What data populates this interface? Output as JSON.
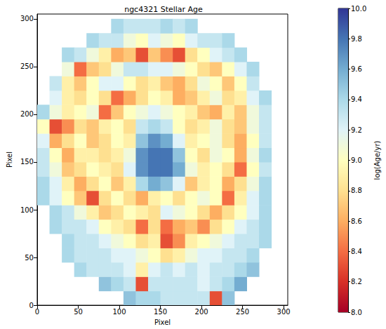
{
  "chart_data": {
    "type": "heatmap",
    "title": "ngc4321 Stellar Age",
    "x_label": "Pixel",
    "y_label": "Pixel",
    "xlim": [
      0,
      305
    ],
    "ylim": [
      0,
      305
    ],
    "xticks": [
      0,
      50,
      100,
      150,
      200,
      250,
      300
    ],
    "yticks": [
      0,
      50,
      100,
      150,
      200,
      250,
      300
    ],
    "grid": false,
    "cell_x": [
      7.5,
      22.5,
      37.5,
      52.5,
      67.5,
      82.5,
      97.5,
      112.5,
      127.5,
      142.5,
      157.5,
      172.5,
      187.5,
      202.5,
      217.5,
      232.5,
      247.5,
      262.5,
      277.5,
      292.5
    ],
    "cell_y": [
      7.5,
      22.5,
      37.5,
      52.5,
      67.5,
      82.5,
      97.5,
      112.5,
      127.5,
      142.5,
      157.5,
      172.5,
      187.5,
      202.5,
      217.5,
      232.5,
      247.5,
      262.5,
      277.5,
      292.5
    ],
    "cells": [
      [
        null,
        null,
        null,
        null,
        null,
        null,
        null,
        9.5,
        9.4,
        9.4,
        9.3,
        9.3,
        9.3,
        9.3,
        8.3,
        9.5,
        null,
        null,
        null,
        null
      ],
      [
        null,
        null,
        null,
        null,
        null,
        9.5,
        9.4,
        9.3,
        8.3,
        9.3,
        9.3,
        9.3,
        9.3,
        9.2,
        9.3,
        9.4,
        9.6,
        null,
        null,
        null
      ],
      [
        null,
        null,
        null,
        9.4,
        9.3,
        9.3,
        9.3,
        9.2,
        8.9,
        9.2,
        9.3,
        9.2,
        9.3,
        9.2,
        9.3,
        9.3,
        9.4,
        9.5,
        null,
        null
      ],
      [
        null,
        null,
        9.4,
        9.3,
        9.3,
        9.3,
        9.2,
        9.2,
        9.1,
        9.0,
        8.8,
        8.9,
        9.1,
        9.2,
        9.2,
        9.3,
        9.3,
        9.4,
        null,
        null
      ],
      [
        null,
        null,
        9.4,
        9.3,
        9.3,
        9.2,
        9.1,
        9.0,
        8.8,
        8.9,
        8.3,
        8.5,
        8.9,
        9.0,
        9.1,
        9.2,
        9.3,
        9.3,
        9.4,
        null
      ],
      [
        null,
        9.4,
        9.3,
        9.3,
        9.2,
        9.0,
        8.9,
        8.8,
        8.4,
        8.8,
        8.4,
        8.6,
        8.7,
        8.5,
        8.8,
        9.0,
        9.2,
        9.3,
        9.4,
        null
      ],
      [
        null,
        9.4,
        9.3,
        9.1,
        8.9,
        8.7,
        8.8,
        9.0,
        8.9,
        8.8,
        9.2,
        9.1,
        9.0,
        8.8,
        8.6,
        8.8,
        9.0,
        9.2,
        9.4,
        null
      ],
      [
        9.4,
        9.2,
        9.0,
        8.7,
        8.3,
        8.8,
        9.0,
        8.8,
        8.6,
        8.9,
        9.0,
        8.8,
        9.0,
        9.1,
        9.0,
        8.4,
        8.9,
        9.2,
        9.4,
        null
      ],
      [
        9.4,
        9.2,
        8.9,
        8.6,
        8.8,
        9.0,
        8.7,
        8.9,
        9.4,
        9.6,
        9.5,
        9.2,
        8.7,
        8.9,
        9.0,
        8.6,
        8.8,
        9.1,
        9.4,
        null
      ],
      [
        9.3,
        9.1,
        8.7,
        8.8,
        9.0,
        8.9,
        8.8,
        9.2,
        9.7,
        9.8,
        9.8,
        9.6,
        9.1,
        8.9,
        9.0,
        8.8,
        8.4,
        9.0,
        9.3,
        null
      ],
      [
        9.3,
        9.0,
        8.6,
        8.9,
        8.9,
        8.8,
        8.9,
        9.1,
        9.7,
        9.8,
        9.8,
        9.5,
        9.0,
        8.8,
        9.1,
        9.0,
        8.6,
        9.1,
        9.4,
        null
      ],
      [
        9.2,
        8.6,
        8.8,
        9.0,
        8.7,
        8.8,
        9.0,
        8.9,
        9.5,
        9.7,
        9.6,
        9.2,
        8.9,
        9.0,
        9.1,
        8.8,
        8.6,
        9.0,
        9.3,
        null
      ],
      [
        9.0,
        8.3,
        8.5,
        8.8,
        8.7,
        8.9,
        9.0,
        8.8,
        9.3,
        9.4,
        9.3,
        9.0,
        8.8,
        8.9,
        9.1,
        8.8,
        8.7,
        9.1,
        9.3,
        null
      ],
      [
        9.4,
        9.1,
        8.9,
        9.0,
        9.1,
        8.4,
        8.7,
        9.0,
        9.1,
        9.2,
        9.1,
        9.0,
        8.9,
        8.7,
        8.6,
        8.9,
        8.7,
        9.1,
        9.3,
        null
      ],
      [
        null,
        9.2,
        8.9,
        8.8,
        9.0,
        8.8,
        8.4,
        8.6,
        8.8,
        9.0,
        8.9,
        8.6,
        8.7,
        8.9,
        9.1,
        8.8,
        8.9,
        9.2,
        9.4,
        null
      ],
      [
        null,
        9.3,
        8.9,
        8.7,
        9.0,
        9.2,
        9.2,
        9.0,
        8.8,
        8.9,
        8.7,
        8.6,
        8.8,
        9.1,
        9.0,
        8.7,
        9.0,
        9.3,
        null,
        null
      ],
      [
        null,
        null,
        9.1,
        8.4,
        8.7,
        8.8,
        9.1,
        9.3,
        9.3,
        9.2,
        9.2,
        9.1,
        9.0,
        8.8,
        8.7,
        9.0,
        9.2,
        9.4,
        null,
        null
      ],
      [
        null,
        null,
        9.4,
        9.3,
        9.1,
        8.9,
        8.6,
        8.7,
        8.3,
        8.7,
        8.5,
        8.3,
        8.8,
        9.0,
        9.2,
        9.3,
        9.4,
        null,
        null,
        null
      ],
      [
        null,
        null,
        null,
        null,
        9.4,
        9.3,
        9.3,
        9.1,
        9.0,
        9.2,
        9.1,
        9.0,
        9.2,
        9.3,
        9.3,
        9.4,
        null,
        null,
        null,
        null
      ],
      [
        null,
        null,
        null,
        null,
        null,
        null,
        9.4,
        9.3,
        9.3,
        9.3,
        9.4,
        9.3,
        9.4,
        null,
        null,
        null,
        null,
        null,
        null,
        null
      ]
    ],
    "color_label": "log(Age/yr)",
    "color_range": [
      8.0,
      10.0
    ],
    "color_ticks": [
      {
        "value": 8,
        "label": "8.0"
      },
      8.2,
      8.4,
      8.6,
      8.8,
      {
        "value": 9,
        "label": "9.0"
      },
      9.2,
      9.4,
      9.6,
      9.8,
      {
        "value": 10,
        "label": "10.0"
      }
    ]
  }
}
